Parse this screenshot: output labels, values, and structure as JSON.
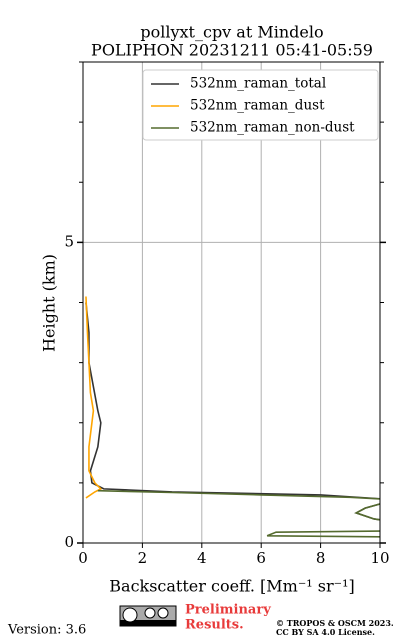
{
  "chart_data": {
    "type": "profile",
    "title": [
      "pollyxt_cpv at Mindelo",
      "POLIPHON 20231211 05:41-05:59"
    ],
    "xlabel": "Backscatter coeff. [Mm⁻¹ sr⁻¹]",
    "ylabel": "Height (km)",
    "xlim": [
      0,
      10
    ],
    "xticks": [
      0,
      2,
      4,
      6,
      8,
      10
    ],
    "ylim": [
      0,
      8
    ],
    "yticks": [
      0,
      5
    ],
    "yminor_ticks": [
      1,
      2,
      3,
      4,
      6,
      7,
      8
    ],
    "grid": true,
    "legend": "upper right",
    "series": [
      {
        "name": "532nm_raman_total",
        "color": "#333333",
        "x": [
          0.1,
          0.2,
          0.2,
          0.35,
          0.5,
          0.6,
          0.5,
          0.25,
          0.3,
          0.7,
          3,
          8,
          10.5,
          9.5,
          9.2,
          9.8,
          10.5
        ],
        "y": [
          4.0,
          3.5,
          3.0,
          2.6,
          2.2,
          2.0,
          1.6,
          1.2,
          1.0,
          0.9,
          0.85,
          0.8,
          0.72,
          0.58,
          0.5,
          0.4,
          0.35
        ]
      },
      {
        "name": "532nm_raman_dust",
        "color": "#ffa500",
        "x": [
          0.1,
          0.15,
          0.2,
          0.25,
          0.35,
          0.3,
          0.2,
          0.2,
          0.4,
          0.6,
          0.4,
          0.1
        ],
        "y": [
          4.1,
          3.5,
          3.0,
          2.5,
          2.2,
          2.0,
          1.6,
          1.2,
          1.0,
          0.9,
          0.85,
          0.75
        ]
      },
      {
        "name": "532nm_raman_non-dust",
        "color": "#556b2f",
        "x": [
          0.5,
          3,
          6,
          9,
          10.5,
          9.5,
          9.2,
          9.8,
          10.5,
          10.3,
          6.5,
          6.2,
          10.5
        ],
        "y": [
          0.87,
          0.84,
          0.8,
          0.76,
          0.72,
          0.58,
          0.5,
          0.4,
          0.35,
          0.2,
          0.18,
          0.12,
          0.1
        ]
      }
    ],
    "footer": {
      "version": "Version: 3.6",
      "preliminary": [
        "Preliminary",
        "Results."
      ],
      "copyright": [
        "© TROPOS & OSCM 2023.",
        "CC BY SA 4.0 License."
      ]
    }
  }
}
